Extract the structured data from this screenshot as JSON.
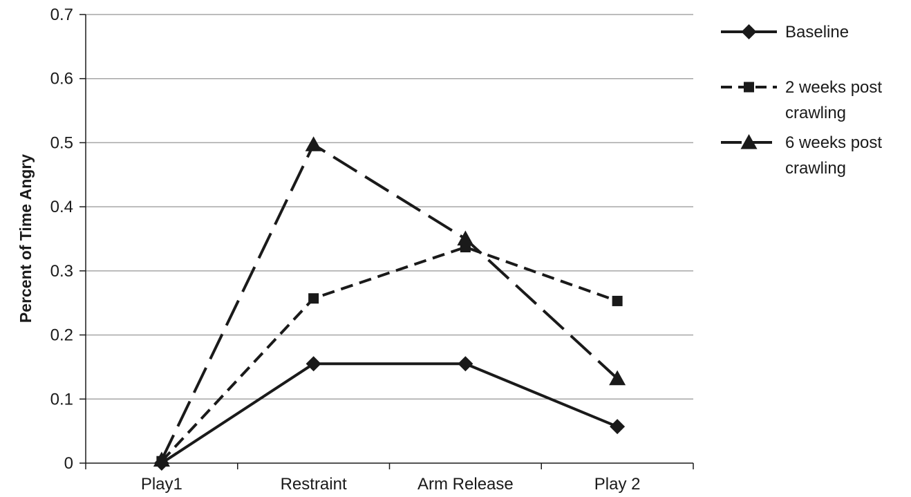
{
  "chart_data": {
    "type": "line",
    "title": "",
    "xlabel": "",
    "ylabel": "Percent of Time Angry",
    "categories": [
      "Play1",
      "Restraint",
      "Arm Release",
      "Play 2"
    ],
    "ylim": [
      0,
      0.7
    ],
    "yticks": [
      "0",
      "0.1",
      "0.2",
      "0.3",
      "0.4",
      "0.5",
      "0.6",
      "0.7"
    ],
    "grid": "horizontal",
    "legend_position": "right",
    "series": [
      {
        "name": "Baseline",
        "values": [
          0,
          0.155,
          0.155,
          0.057
        ],
        "marker": "diamond",
        "line_style": "solid",
        "color": "#1a1a1a"
      },
      {
        "name": "2 weeks post crawling",
        "name_lines": [
          "2 weeks post",
          "crawling"
        ],
        "values": [
          0.003,
          0.257,
          0.337,
          0.253
        ],
        "marker": "square",
        "line_style": "dashed",
        "color": "#1a1a1a"
      },
      {
        "name": "6 weeks post crawling",
        "name_lines": [
          "6 weeks post",
          "crawling"
        ],
        "values": [
          0.005,
          0.497,
          0.35,
          0.132
        ],
        "marker": "triangle",
        "line_style": "long-dash",
        "color": "#1a1a1a"
      }
    ]
  }
}
